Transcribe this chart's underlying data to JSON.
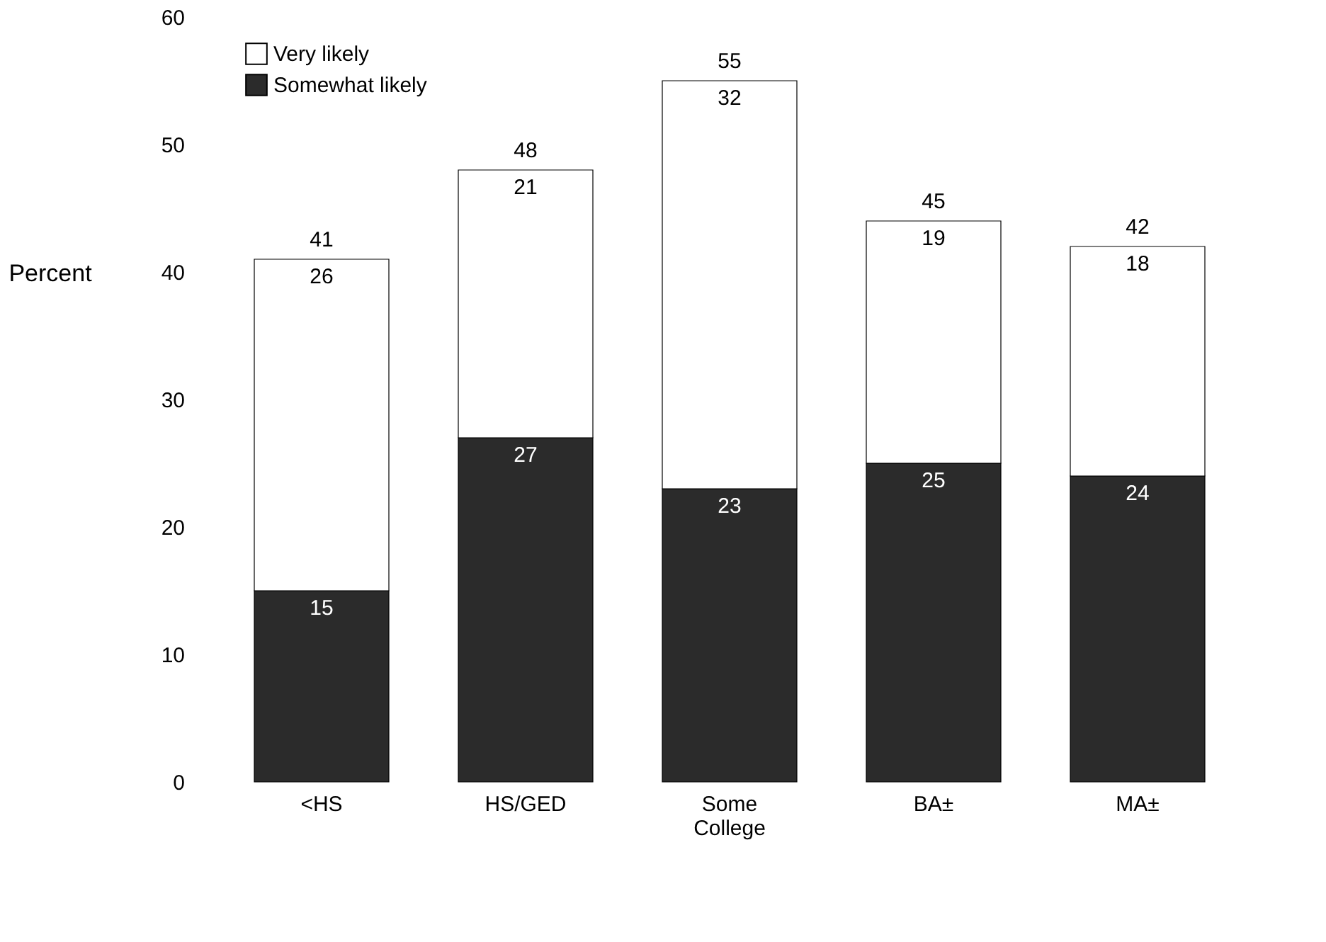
{
  "chart_data": {
    "type": "bar",
    "stacked": true,
    "ylabel": "Percent",
    "categories": [
      "<HS",
      "HS/GED",
      "Some College",
      "BA±",
      "MA±"
    ],
    "series": [
      {
        "name": "Somewhat likely",
        "color": "#2b2b2b",
        "values": [
          15,
          27,
          23,
          25,
          24
        ]
      },
      {
        "name": "Very likely",
        "color": "#ffffff",
        "values": [
          26,
          21,
          32,
          19,
          18
        ]
      }
    ],
    "totals": [
      "41",
      "48",
      "55",
      "45",
      "42"
    ],
    "ylim": [
      0,
      60
    ],
    "yticks": [
      0,
      10,
      20,
      30,
      40,
      50,
      60
    ],
    "grid": false,
    "legend": "top left",
    "data_labels": true
  }
}
